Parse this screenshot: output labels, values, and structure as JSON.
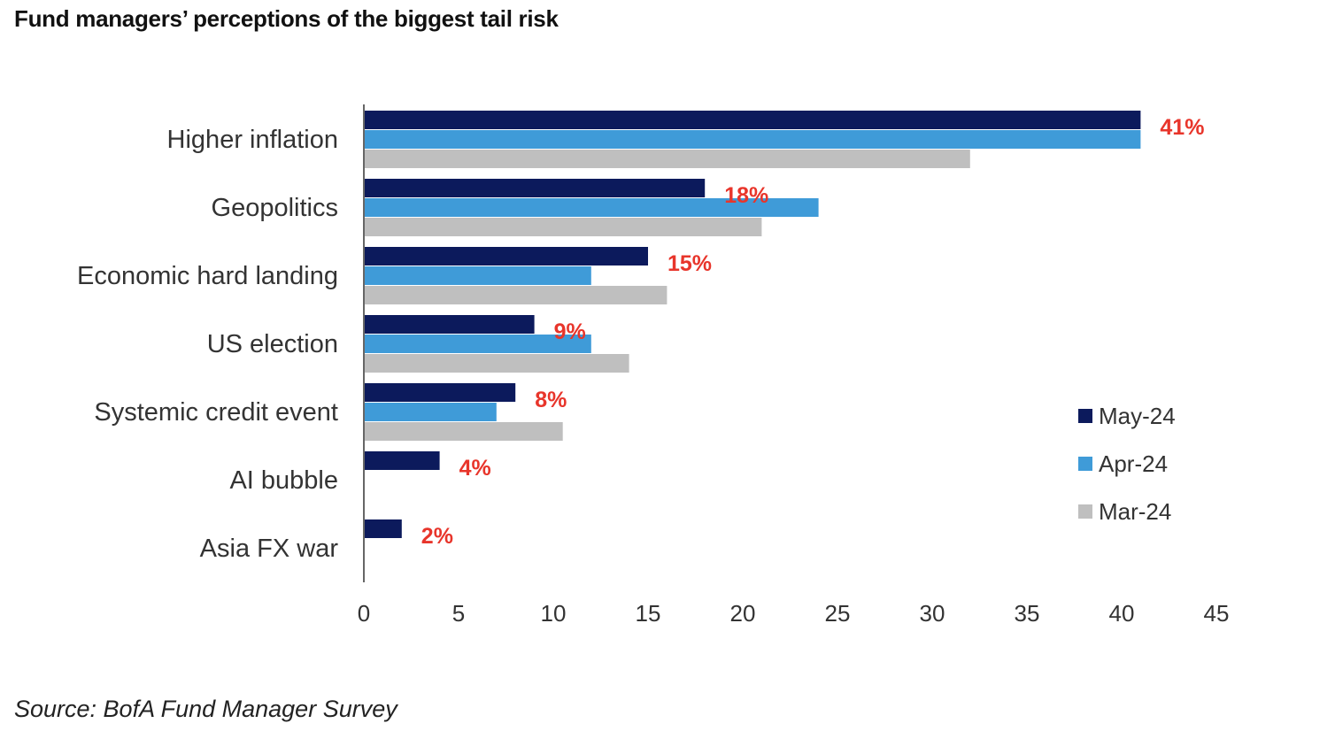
{
  "title": "Fund managers’ perceptions of the biggest tail risk",
  "source": "Source: BofA Fund Manager Survey",
  "colors": {
    "may": "#0c1a5c",
    "apr": "#3f9bd8",
    "mar": "#bfbfbf",
    "value_label": "#e8352b",
    "axis": "#666666"
  },
  "chart_data": {
    "type": "bar",
    "orientation": "horizontal",
    "title": "Fund managers’ perceptions of the biggest tail risk",
    "xlabel": "",
    "ylabel": "",
    "xlim": [
      0,
      45
    ],
    "xticks": [
      "0",
      "5",
      "10",
      "15",
      "20",
      "25",
      "30",
      "35",
      "40",
      "45"
    ],
    "grid": false,
    "legend_position": "right",
    "categories": [
      "Higher inflation",
      "Geopolitics",
      "Economic hard landing",
      "US election",
      "Systemic credit event",
      "AI bubble",
      "Asia FX war"
    ],
    "series": [
      {
        "name": "May-24",
        "color": "#0c1a5c",
        "values": [
          41,
          18,
          15,
          9,
          8,
          4,
          2
        ]
      },
      {
        "name": "Apr-24",
        "color": "#3f9bd8",
        "values": [
          41,
          24,
          12,
          12,
          7,
          null,
          null
        ]
      },
      {
        "name": "Mar-24",
        "color": "#bfbfbf",
        "values": [
          32,
          21,
          16,
          14,
          10.5,
          null,
          null
        ]
      }
    ],
    "data_labels": [
      "41%",
      "18%",
      "15%",
      "9%",
      "8%",
      "4%",
      "2%"
    ]
  }
}
